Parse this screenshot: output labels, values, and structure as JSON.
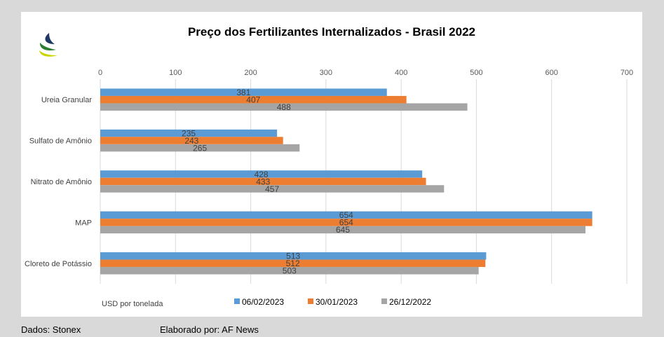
{
  "chart_data": {
    "type": "bar",
    "orientation": "horizontal",
    "title": "Preço dos Fertilizantes Internalizados  - Brasil 2022",
    "xlabel": "USD por tonelada",
    "ylabel": "",
    "xlim": [
      0,
      700
    ],
    "x_ticks": [
      "0",
      "100",
      "200",
      "300",
      "400",
      "500",
      "600",
      "700"
    ],
    "x_axis_position": "top",
    "grid": true,
    "legend_position": "bottom",
    "categories": [
      "Ureia Granular",
      "Sulfato de Amônio",
      "Nitrato de Amônio",
      "MAP",
      "Cloreto de Potássio"
    ],
    "series": [
      {
        "name": "06/02/2023",
        "color": "#5b9bd5",
        "values": [
          381,
          235,
          428,
          654,
          513
        ]
      },
      {
        "name": "30/01/2023",
        "color": "#ed7d31",
        "values": [
          407,
          243,
          433,
          654,
          512
        ]
      },
      {
        "name": "26/12/2022",
        "color": "#a5a5a5",
        "values": [
          488,
          265,
          457,
          645,
          503
        ]
      }
    ]
  },
  "logo": {
    "colors": [
      "#1f3864",
      "#2e7d32",
      "#c9d400"
    ]
  },
  "footer": {
    "source": "Dados: Stonex",
    "author": "Elaborado por: AF News"
  }
}
